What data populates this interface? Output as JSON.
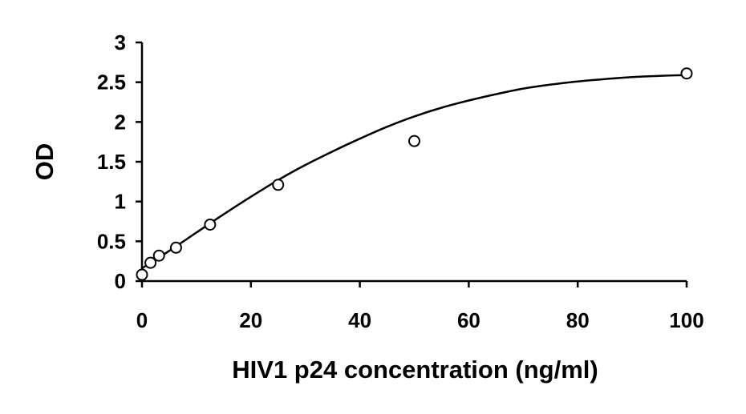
{
  "chart_data": {
    "type": "scatter",
    "title": "",
    "xlabel": "HIV1 p24 concentration (ng/ml)",
    "ylabel": "OD",
    "xlim": [
      0,
      100
    ],
    "ylim": [
      0,
      3
    ],
    "x_ticks": [
      0,
      20,
      40,
      60,
      80,
      100
    ],
    "y_ticks": [
      0,
      0.5,
      1,
      1.5,
      2,
      2.5,
      3
    ],
    "y_tick_labels": [
      "0",
      "0.5",
      "1",
      "1.5",
      "2",
      "2.5",
      "3"
    ],
    "grid": false,
    "legend": "none",
    "series": [
      {
        "x": [
          0,
          1.5625,
          3.125,
          6.25,
          12.5,
          25,
          50,
          100
        ],
        "y": [
          0.08,
          0.23,
          0.32,
          0.42,
          0.71,
          1.21,
          1.76,
          2.61
        ]
      }
    ],
    "fit_curve": {
      "x": [
        0,
        5,
        10,
        15,
        20,
        25,
        30,
        35,
        40,
        45,
        50,
        55,
        60,
        65,
        70,
        75,
        80,
        85,
        90,
        95,
        100
      ],
      "y": [
        0.16,
        0.38,
        0.61,
        0.84,
        1.06,
        1.27,
        1.46,
        1.63,
        1.79,
        1.94,
        2.07,
        2.18,
        2.27,
        2.35,
        2.42,
        2.47,
        2.51,
        2.54,
        2.565,
        2.58,
        2.59
      ]
    }
  }
}
